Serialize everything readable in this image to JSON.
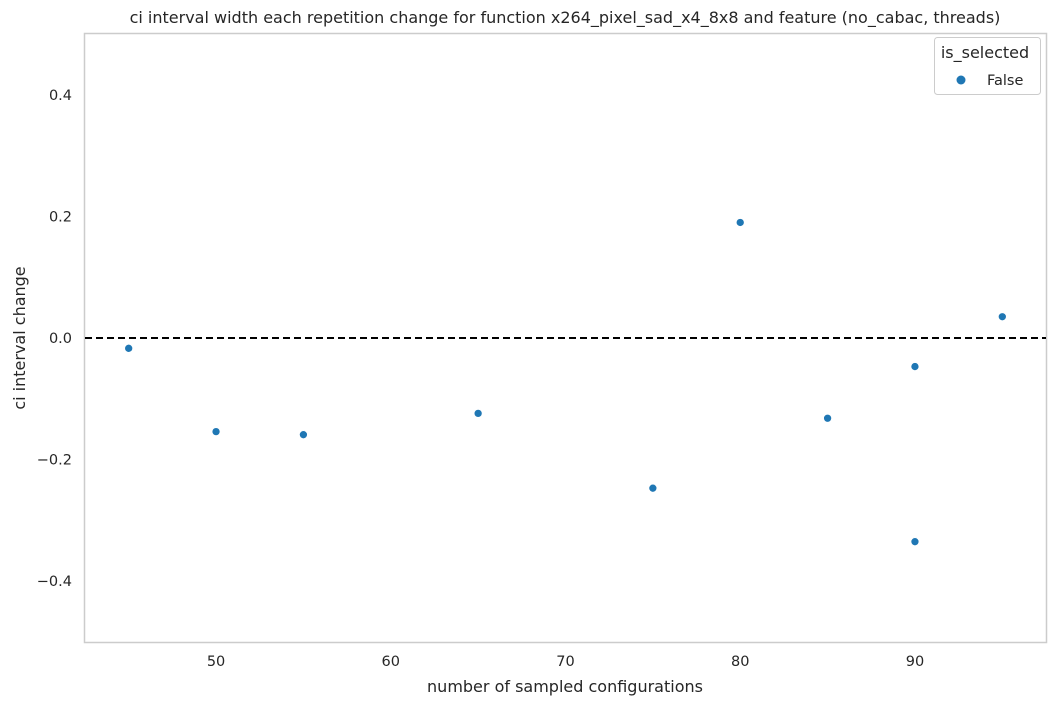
{
  "chart_data": {
    "type": "scatter",
    "title": "ci interval width each repetition change for function x264_pixel_sad_x4_8x8 and feature (no_cabac, threads)",
    "xlabel": "number of sampled configurations",
    "ylabel": "ci interval change",
    "xlim": [
      42.5,
      97.5
    ],
    "ylim": [
      -0.5,
      0.5
    ],
    "xticks": [
      50,
      60,
      70,
      80,
      90
    ],
    "xtick_labels": [
      "50",
      "60",
      "70",
      "80",
      "90"
    ],
    "yticks": [
      -0.4,
      -0.2,
      0.0,
      0.2,
      0.4
    ],
    "ytick_labels": [
      "−0.4",
      "−0.2",
      "0.0",
      "0.2",
      "0.4"
    ],
    "grid": false,
    "reference_line": {
      "y": 0.0,
      "style": "dashed",
      "color": "#000000"
    },
    "legend": {
      "title": "is_selected",
      "placement": "top-right"
    },
    "series": [
      {
        "name": "False",
        "color": "#1f77b4",
        "points": [
          {
            "x": 45,
            "y": -0.017
          },
          {
            "x": 50,
            "y": -0.154
          },
          {
            "x": 55,
            "y": -0.159
          },
          {
            "x": 65,
            "y": -0.124
          },
          {
            "x": 75,
            "y": -0.247
          },
          {
            "x": 80,
            "y": 0.19
          },
          {
            "x": 85,
            "y": -0.132
          },
          {
            "x": 90,
            "y": -0.047
          },
          {
            "x": 90,
            "y": -0.335
          },
          {
            "x": 95,
            "y": 0.035
          }
        ]
      }
    ]
  }
}
